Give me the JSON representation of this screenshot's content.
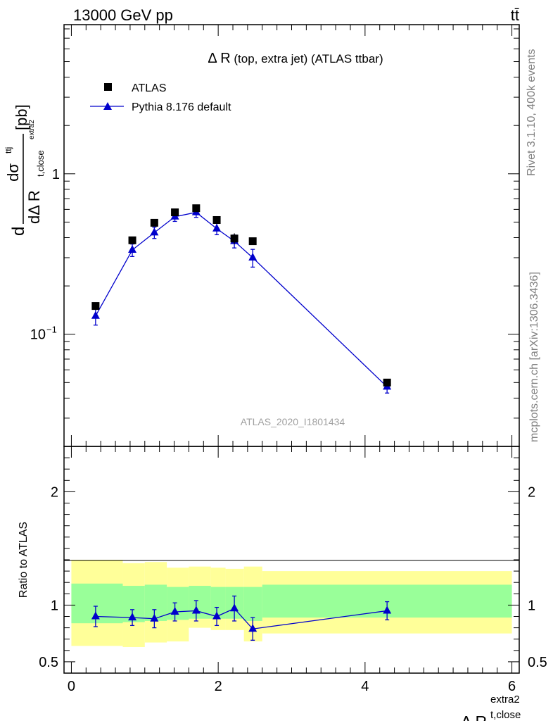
{
  "header": {
    "left": "13000 GeV pp",
    "right": "tt̄"
  },
  "side_text": {
    "rivet": "Rivet 3.1.10,  400k events",
    "mcplots": "mcplots.cern.ch [arXiv:1306.3436]"
  },
  "analysis_id": "ATLAS_2020_I1801434",
  "chart_data": [
    {
      "type": "scatter",
      "title_main": "Δ R",
      "title_sub": " (top, extra jet) (ATLAS ttbar)",
      "ylabel_parts": {
        "d1": "d",
        "dsigma": "dσ",
        "sigma_sup": "ttj",
        "d2": "dΔ R",
        "sub": "t,close",
        "sub_sup": "extra2",
        "unit": "[pb]"
      },
      "yscale": "log",
      "ylim": [
        0.02,
        8.5
      ],
      "xlim": [
        -0.1,
        6.1
      ],
      "yticks": [
        {
          "value": 1,
          "label": "1"
        },
        {
          "value": 0.1,
          "label": "10",
          "sup": "−1"
        }
      ],
      "legend_position": "top-left",
      "series": [
        {
          "name": "ATLAS",
          "marker": "square",
          "color": "#000000",
          "x": [
            0.33,
            0.83,
            1.13,
            1.41,
            1.7,
            1.98,
            2.22,
            2.47,
            4.3
          ],
          "y": [
            0.15,
            0.385,
            0.495,
            0.575,
            0.61,
            0.515,
            0.395,
            0.38,
            0.05
          ],
          "err": [
            0.004,
            0.01,
            0.012,
            0.014,
            0.015,
            0.013,
            0.03,
            0.01,
            0.002
          ]
        },
        {
          "name": "Pythia 8.176 default",
          "marker": "triangle",
          "color": "#0000cc",
          "x": [
            0.33,
            0.83,
            1.13,
            1.41,
            1.7,
            1.98,
            2.22,
            2.47,
            4.3
          ],
          "y": [
            0.13,
            0.335,
            0.43,
            0.54,
            0.575,
            0.455,
            0.38,
            0.3,
            0.047
          ],
          "err": [
            0.016,
            0.03,
            0.035,
            0.035,
            0.04,
            0.038,
            0.035,
            0.038,
            0.004
          ]
        }
      ]
    },
    {
      "type": "line",
      "ylabel": "Ratio to ATLAS",
      "xlabel_main": "Δ R",
      "xlabel_sub": "t,close",
      "xlabel_sup": "extra2",
      "ylim": [
        0.4,
        2.4
      ],
      "xlim": [
        -0.1,
        6.1
      ],
      "yticks": [
        0.5,
        1,
        2
      ],
      "xticks": [
        0,
        2,
        4,
        6
      ],
      "bands": {
        "edges": [
          0,
          0.7,
          1,
          1.3,
          1.6,
          1.9,
          2.1,
          2.35,
          2.6,
          6
        ],
        "yellow_lo": [
          0.64,
          0.63,
          0.67,
          0.68,
          0.8,
          0.78,
          0.78,
          0.68,
          0.75,
          0.75
        ],
        "yellow_hi": [
          1.4,
          1.37,
          1.38,
          1.33,
          1.34,
          1.33,
          1.32,
          1.34,
          1.3,
          1.3
        ],
        "green_lo": [
          0.84,
          0.85,
          0.86,
          0.87,
          0.88,
          0.88,
          0.88,
          0.86,
          0.89,
          0.89
        ],
        "green_hi": [
          1.19,
          1.17,
          1.18,
          1.16,
          1.17,
          1.16,
          1.16,
          1.16,
          1.18,
          1.18
        ],
        "yellow_color": "#ffff99",
        "green_color": "#99ff99"
      },
      "series": [
        {
          "name": "Pythia 8.176 default",
          "color": "#0000cc",
          "x": [
            0.33,
            0.83,
            1.13,
            1.41,
            1.7,
            1.98,
            2.22,
            2.47,
            4.3
          ],
          "y": [
            0.9,
            0.89,
            0.88,
            0.94,
            0.95,
            0.9,
            0.97,
            0.79,
            0.95
          ],
          "err": [
            0.09,
            0.07,
            0.08,
            0.08,
            0.09,
            0.08,
            0.11,
            0.1,
            0.08
          ]
        }
      ]
    }
  ]
}
